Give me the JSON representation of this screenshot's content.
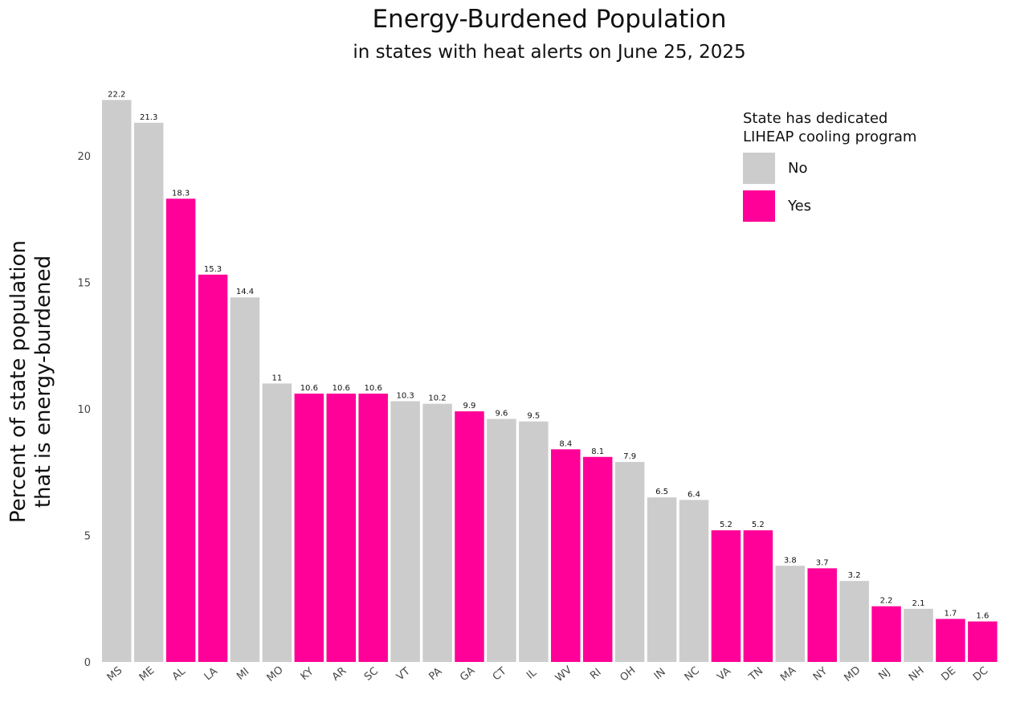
{
  "chart_data": {
    "type": "bar",
    "title": "Energy-Burdened Population",
    "subtitle": "in states with heat alerts on June 25, 2025",
    "ylabel_lines": [
      "Percent of state population",
      "that is energy-burdened"
    ],
    "xlabel": "",
    "ylim": [
      0,
      22.5
    ],
    "yticks": [
      0,
      5,
      10,
      15,
      20
    ],
    "grid": false,
    "legend_position": "top-right",
    "legend": {
      "title_lines": [
        "State has dedicated",
        "LIHEAP cooling program"
      ],
      "entries": [
        {
          "label": "No",
          "color": "#cccccc"
        },
        {
          "label": "Yes",
          "color": "#ff0098"
        }
      ]
    },
    "categories": [
      "MS",
      "ME",
      "AL",
      "LA",
      "MI",
      "MO",
      "KY",
      "AR",
      "SC",
      "VT",
      "PA",
      "GA",
      "CT",
      "IL",
      "WV",
      "RI",
      "OH",
      "IN",
      "NC",
      "VA",
      "TN",
      "MA",
      "NY",
      "MD",
      "NJ",
      "NH",
      "DE",
      "DC"
    ],
    "values": [
      22.2,
      21.3,
      18.3,
      15.3,
      14.4,
      11,
      10.6,
      10.6,
      10.6,
      10.3,
      10.2,
      9.9,
      9.6,
      9.5,
      8.4,
      8.1,
      7.9,
      6.5,
      6.4,
      5.2,
      5.2,
      3.8,
      3.7,
      3.2,
      2.2,
      2.1,
      1.7,
      1.6
    ],
    "cooling_program": [
      "No",
      "No",
      "Yes",
      "Yes",
      "No",
      "No",
      "Yes",
      "Yes",
      "Yes",
      "No",
      "No",
      "Yes",
      "No",
      "No",
      "Yes",
      "Yes",
      "No",
      "No",
      "No",
      "Yes",
      "Yes",
      "No",
      "Yes",
      "No",
      "Yes",
      "No",
      "Yes",
      "Yes"
    ]
  }
}
